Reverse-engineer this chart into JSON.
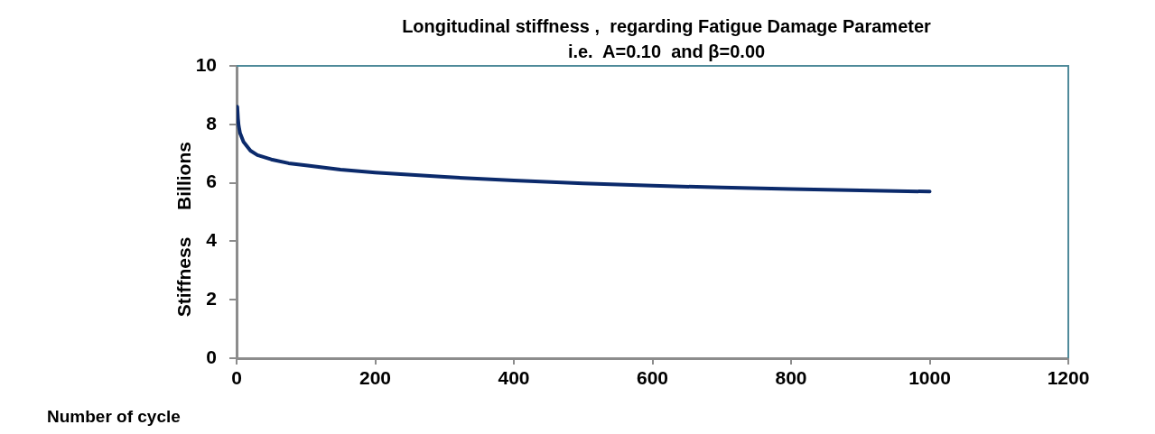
{
  "chart_data": {
    "type": "line",
    "title": "Longitudinal stiffness ,  regarding Fatigue Damage Parameter\ni.e.  A=0.10  and β=0.00",
    "xlabel": "Number of cycle",
    "ylabel": "Stiffness",
    "annotations": [
      "Billions"
    ],
    "series": [
      {
        "color": "#0b2a6b",
        "x": [
          1,
          2,
          3,
          5,
          10,
          20,
          30,
          50,
          75,
          100,
          150,
          200,
          300,
          400,
          500,
          600,
          700,
          800,
          900,
          1000
        ],
        "values": [
          8.6,
          8.2,
          7.95,
          7.7,
          7.4,
          7.1,
          6.95,
          6.8,
          6.67,
          6.6,
          6.45,
          6.35,
          6.2,
          6.08,
          5.98,
          5.9,
          5.84,
          5.79,
          5.74,
          5.7
        ]
      }
    ],
    "xlim": [
      0,
      1200
    ],
    "xticks": [
      0,
      200,
      400,
      600,
      800,
      1000,
      1200
    ],
    "ylim": [
      0,
      10
    ],
    "yticks": [
      0,
      2,
      4,
      6,
      8,
      10
    ],
    "grid": false,
    "legend": false,
    "marker": "none",
    "line_style": "solid"
  }
}
